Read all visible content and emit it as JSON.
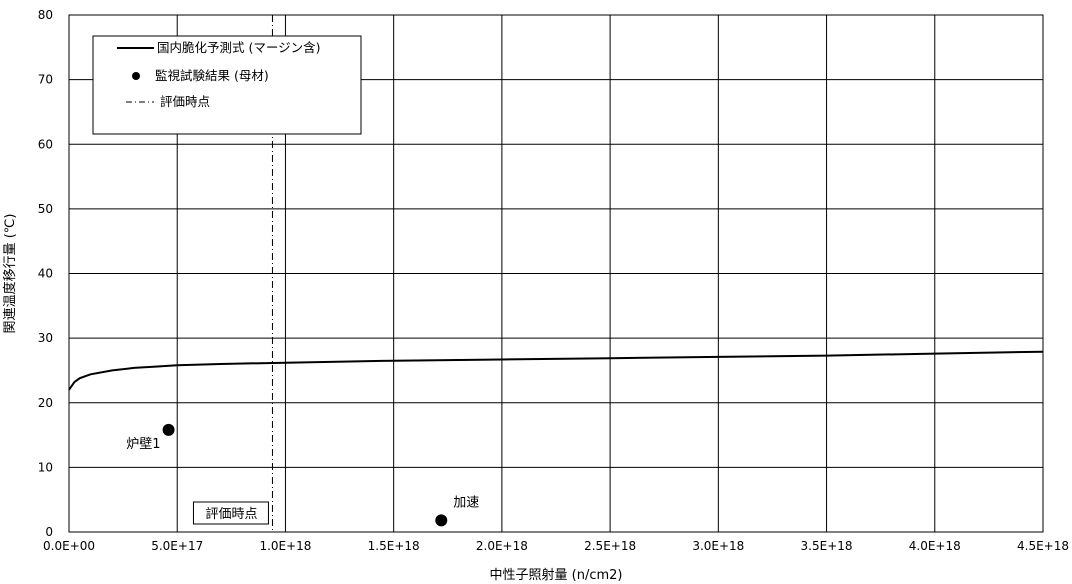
{
  "chart_data": {
    "type": "line",
    "xlabel": "中性子照射量 (n/cm2)",
    "ylabel": "関連温度移行量 (℃)",
    "xlim": [
      0,
      4.5e+18
    ],
    "ylim": [
      0,
      80
    ],
    "x_tick_labels": [
      "0.0E+00",
      "5.0E+17",
      "1.0E+18",
      "1.5E+18",
      "2.0E+18",
      "2.5E+18",
      "3.0E+18",
      "3.5E+18",
      "4.0E+18",
      "4.5E+18"
    ],
    "y_tick_labels": [
      "0",
      "10",
      "20",
      "30",
      "40",
      "50",
      "60",
      "70",
      "80"
    ],
    "grid": true,
    "legend_position": "top-left",
    "series": [
      {
        "name": "国内脆化予測式 (マージン含)",
        "style": "solid-line",
        "x": [
          0,
          2.5e+16,
          5e+16,
          1e+17,
          2e+17,
          3e+17,
          4e+17,
          5e+17,
          7e+17,
          1e+18,
          1.5e+18,
          2e+18,
          2.5e+18,
          3e+18,
          3.5e+18,
          4e+18,
          4.5e+18
        ],
        "y": [
          22.0,
          23.2,
          23.8,
          24.4,
          25.0,
          25.4,
          25.6,
          25.8,
          26.0,
          26.2,
          26.5,
          26.7,
          26.9,
          27.1,
          27.3,
          27.6,
          27.9
        ]
      },
      {
        "name": "監視試験結果 (母材)",
        "style": "marker",
        "points": [
          {
            "x": 4.6e+17,
            "y": 15.8,
            "label": "炉壁1"
          },
          {
            "x": 1.72e+18,
            "y": 1.8,
            "label": "加速"
          }
        ]
      },
      {
        "name": "評価時点",
        "style": "dash-dot",
        "x": 9.4e+17,
        "label": "評価時点"
      }
    ]
  },
  "colors": {
    "line": "#000000",
    "grid": "#000000",
    "background": "#ffffff"
  }
}
